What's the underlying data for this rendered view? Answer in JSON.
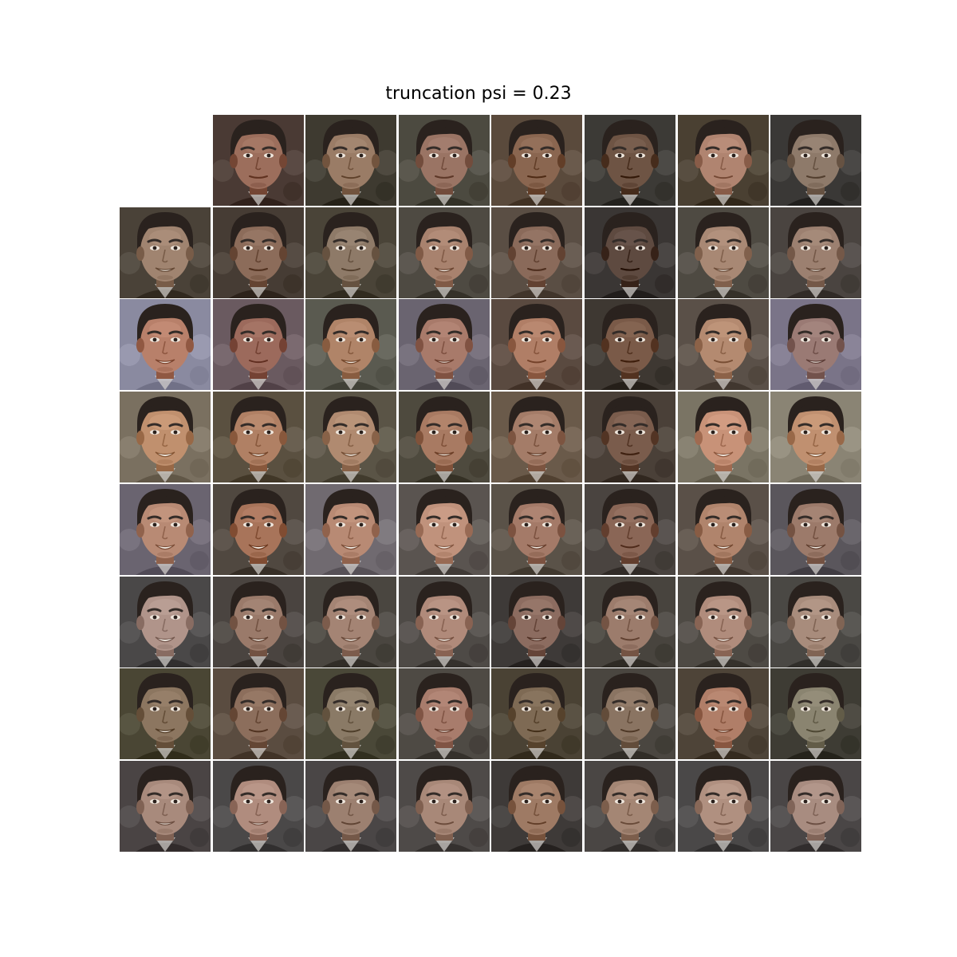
{
  "title": "truncation psi = 0.23",
  "grid": {
    "rows": 8,
    "cols": 8,
    "empty_cells": [
      [
        0,
        0
      ]
    ]
  },
  "colors": {
    "background": "#ffffff",
    "hair": "#2a221e",
    "backdrop": "#4a4038"
  },
  "tiles": [
    [
      null,
      {
        "skin": "#9c6e5c",
        "bg": "#4a3a34",
        "smile": 0.3
      },
      {
        "skin": "#9a7c66",
        "bg": "#3e3a30",
        "smile": 0.4
      },
      {
        "skin": "#9a7464",
        "bg": "#4c4a40",
        "smile": 0.3
      },
      {
        "skin": "#8a6650",
        "bg": "#5a4a3c",
        "smile": 0.1
      },
      {
        "skin": "#6e5444",
        "bg": "#3c3a36",
        "smile": 0.2
      },
      {
        "skin": "#b08470",
        "bg": "#4a4032",
        "smile": 0.4
      },
      {
        "skin": "#8e7a6a",
        "bg": "#3a3836",
        "smile": 0.3
      }
    ],
    [
      {
        "skin": "#a08470",
        "bg": "#4a4238",
        "smile": 0.6
      },
      {
        "skin": "#8c6c5a",
        "bg": "#463c34",
        "smile": 0.3
      },
      {
        "skin": "#8e7a68",
        "bg": "#4a4438",
        "smile": 0.4
      },
      {
        "skin": "#a8826e",
        "bg": "#4e4a42",
        "smile": 0.7
      },
      {
        "skin": "#8a6a5a",
        "bg": "#5a4e44",
        "smile": 0.3
      },
      {
        "skin": "#5e4a40",
        "bg": "#3a3634",
        "smile": 0.2
      },
      {
        "skin": "#a88874",
        "bg": "#4e4a42",
        "smile": 0.6
      },
      {
        "skin": "#9c8070",
        "bg": "#4a4440",
        "smile": 0.6
      }
    ],
    [
      {
        "skin": "#b8806a",
        "bg": "#8a8aa0",
        "smile": 0.7
      },
      {
        "skin": "#9c6a5c",
        "bg": "#6a5a60",
        "smile": 0.4
      },
      {
        "skin": "#b08468",
        "bg": "#5a5a50",
        "smile": 0.7
      },
      {
        "skin": "#a87a6a",
        "bg": "#6a6470",
        "smile": 0.6
      },
      {
        "skin": "#b07e66",
        "bg": "#5a4a40",
        "smile": 0.5
      },
      {
        "skin": "#7a5a48",
        "bg": "#3e3832",
        "smile": 0.2
      },
      {
        "skin": "#b48a70",
        "bg": "#5a5048",
        "smile": 0.5
      },
      {
        "skin": "#9a7a74",
        "bg": "#7a7488",
        "smile": 0.6
      }
    ],
    [
      {
        "skin": "#c0906e",
        "bg": "#7a7060",
        "smile": 0.9
      },
      {
        "skin": "#b08064",
        "bg": "#5a5040",
        "smile": 0.8
      },
      {
        "skin": "#b08a70",
        "bg": "#5a5446",
        "smile": 0.8
      },
      {
        "skin": "#a87a62",
        "bg": "#4e4a3e",
        "smile": 0.7
      },
      {
        "skin": "#a47c68",
        "bg": "#6a5a4a",
        "smile": 0.6
      },
      {
        "skin": "#7a5c4c",
        "bg": "#4a4038",
        "smile": 0.3
      },
      {
        "skin": "#c89278",
        "bg": "#7a7464",
        "smile": 0.9
      },
      {
        "skin": "#c09070",
        "bg": "#8a8474",
        "smile": 0.9
      }
    ],
    [
      {
        "skin": "#b88a74",
        "bg": "#6a6470",
        "smile": 0.9
      },
      {
        "skin": "#a8745a",
        "bg": "#504840",
        "smile": 0.9
      },
      {
        "skin": "#b88a74",
        "bg": "#706a70",
        "smile": 0.9
      },
      {
        "skin": "#c0927c",
        "bg": "#5a5450",
        "smile": 0.8
      },
      {
        "skin": "#a47a68",
        "bg": "#5a5248",
        "smile": 0.8
      },
      {
        "skin": "#8a6656",
        "bg": "#4a4440",
        "smile": 0.5
      },
      {
        "skin": "#b0846c",
        "bg": "#5a5048",
        "smile": 0.8
      },
      {
        "skin": "#9c7a6a",
        "bg": "#5a565c",
        "smile": 0.8
      }
    ],
    [
      {
        "skin": "#b0948a",
        "bg": "#4a4848",
        "smile": 0.9
      },
      {
        "skin": "#9a7a6a",
        "bg": "#4a4440",
        "smile": 0.8
      },
      {
        "skin": "#a48474",
        "bg": "#4a4640",
        "smile": 0.8
      },
      {
        "skin": "#b08a7a",
        "bg": "#4e4a46",
        "smile": 0.8
      },
      {
        "skin": "#8c6c60",
        "bg": "#3e3a38",
        "smile": 0.6
      },
      {
        "skin": "#9c7c6c",
        "bg": "#48443e",
        "smile": 0.5
      },
      {
        "skin": "#b08c7c",
        "bg": "#4e4a44",
        "smile": 0.8
      },
      {
        "skin": "#a88c7c",
        "bg": "#4a4844",
        "smile": 0.8
      }
    ],
    [
      {
        "skin": "#8c7660",
        "bg": "#4a4634",
        "smile": 0.7
      },
      {
        "skin": "#8c6e5c",
        "bg": "#5a4c40",
        "smile": 0.5
      },
      {
        "skin": "#8a7a66",
        "bg": "#4a4838",
        "smile": 0.5
      },
      {
        "skin": "#a87c6c",
        "bg": "#4e4a44",
        "smile": 0.6
      },
      {
        "skin": "#7e6a54",
        "bg": "#4a4234",
        "smile": 0.4
      },
      {
        "skin": "#8a7462",
        "bg": "#4a4640",
        "smile": 0.5
      },
      {
        "skin": "#b07e68",
        "bg": "#4e4438",
        "smile": 0.6
      },
      {
        "skin": "#8a8470",
        "bg": "#3e3c34",
        "smile": 0.5
      }
    ],
    [
      {
        "skin": "#a88a7c",
        "bg": "#4a4444",
        "smile": 0.6
      },
      {
        "skin": "#b08c7e",
        "bg": "#4a4848",
        "smile": 0.6
      },
      {
        "skin": "#9c8070",
        "bg": "#4a4646",
        "smile": 0.5
      },
      {
        "skin": "#a88878",
        "bg": "#4e4a48",
        "smile": 0.5
      },
      {
        "skin": "#9e7a64",
        "bg": "#3e3a38",
        "smile": 0.4
      },
      {
        "skin": "#a48674",
        "bg": "#4a4644",
        "smile": 0.4
      },
      {
        "skin": "#b09080",
        "bg": "#4a4848",
        "smile": 0.5
      },
      {
        "skin": "#a88c80",
        "bg": "#4a4646",
        "smile": 0.5
      }
    ]
  ]
}
